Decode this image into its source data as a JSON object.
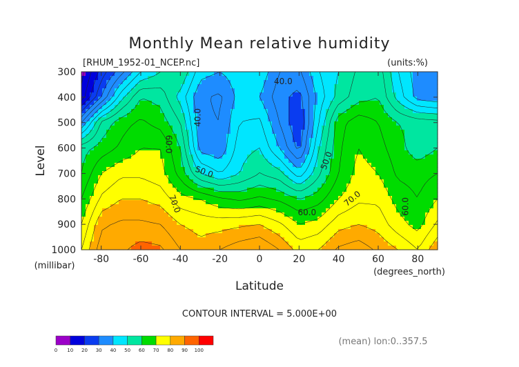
{
  "header": {
    "title": "Monthly Mean relative humidity",
    "filename": "[RHUM_1952-01_NCEP.nc]",
    "units": "(units:%)"
  },
  "footer": {
    "contour_interval": "CONTOUR INTERVAL = 5.000E+00",
    "mean_note": "(mean) lon:0..357.5"
  },
  "chart_data": {
    "type": "contour",
    "title": "Monthly Mean relative humidity",
    "xlabel": "Latitude",
    "x_unit": "(degrees_north)",
    "ylabel": "Level",
    "y_unit": "(millibar)",
    "xlim": [
      -90,
      90
    ],
    "ylim": [
      1000,
      300
    ],
    "x_ticks": [
      -80,
      -60,
      -40,
      -20,
      0,
      20,
      40,
      60,
      80
    ],
    "y_ticks": [
      300,
      400,
      500,
      600,
      700,
      800,
      900,
      1000
    ],
    "contour_interval": 5,
    "contour_labels": [
      {
        "text": "40.0",
        "lat": -31,
        "lev": 480,
        "rotate": -90
      },
      {
        "text": "40.0",
        "lat": 12,
        "lev": 340,
        "rotate": 0
      },
      {
        "text": "50.0",
        "lat": -28,
        "lev": 695,
        "rotate": 20
      },
      {
        "text": "50.0",
        "lat": 34,
        "lev": 650,
        "rotate": -70
      },
      {
        "text": "60.0",
        "lat": -46,
        "lev": 585,
        "rotate": 90
      },
      {
        "text": "60.0",
        "lat": 24,
        "lev": 855,
        "rotate": 0
      },
      {
        "text": "60.0",
        "lat": 74,
        "lev": 830,
        "rotate": -90
      },
      {
        "text": "70.0",
        "lat": -43,
        "lev": 820,
        "rotate": 70
      },
      {
        "text": "70.0",
        "lat": 47,
        "lev": 800,
        "rotate": -40
      }
    ],
    "colorbar": {
      "boundaries": [
        0,
        10,
        20,
        30,
        40,
        50,
        60,
        70,
        80,
        90,
        100
      ],
      "colors": [
        "#9b00c8",
        "#0000dc",
        "#0a3cf0",
        "#1e8cff",
        "#00e6ff",
        "#00e6a0",
        "#00dc00",
        "#ffff00",
        "#ffaa00",
        "#ff6400",
        "#ff0000"
      ]
    },
    "field": {
      "lats": [
        -90,
        -80,
        -70,
        -60,
        -50,
        -40,
        -30,
        -20,
        -10,
        0,
        10,
        20,
        30,
        40,
        50,
        60,
        70,
        80,
        90
      ],
      "levels": [
        300,
        400,
        500,
        600,
        700,
        800,
        900,
        1000
      ],
      "values": [
        [
          8,
          22,
          33,
          45,
          50,
          55,
          42,
          40,
          43,
          44,
          35,
          34,
          45,
          50,
          56,
          58,
          45,
          37,
          35
        ],
        [
          12,
          30,
          48,
          60,
          58,
          48,
          36,
          34,
          42,
          40,
          32,
          28,
          42,
          52,
          58,
          60,
          48,
          38,
          36
        ],
        [
          35,
          56,
          63,
          66,
          63,
          55,
          36,
          35,
          45,
          46,
          35,
          25,
          45,
          63,
          68,
          65,
          60,
          58,
          57
        ],
        [
          58,
          62,
          66,
          70,
          70,
          60,
          38,
          36,
          48,
          50,
          40,
          28,
          50,
          64,
          70,
          67,
          62,
          57,
          60
        ],
        [
          60,
          70,
          74,
          74,
          72,
          63,
          50,
          45,
          50,
          55,
          52,
          42,
          54,
          65,
          72,
          70,
          64,
          63,
          65
        ],
        [
          65,
          76,
          80,
          80,
          78,
          72,
          70,
          66,
          64,
          66,
          64,
          60,
          63,
          70,
          74,
          74,
          68,
          65,
          70
        ],
        [
          70,
          84,
          86,
          86,
          85,
          80,
          78,
          78,
          79,
          80,
          76,
          70,
          72,
          78,
          80,
          78,
          72,
          68,
          76
        ],
        [
          75,
          88,
          89,
          92,
          91,
          85,
          82,
          85,
          88,
          90,
          85,
          78,
          80,
          86,
          88,
          84,
          80,
          75,
          84
        ]
      ]
    }
  }
}
